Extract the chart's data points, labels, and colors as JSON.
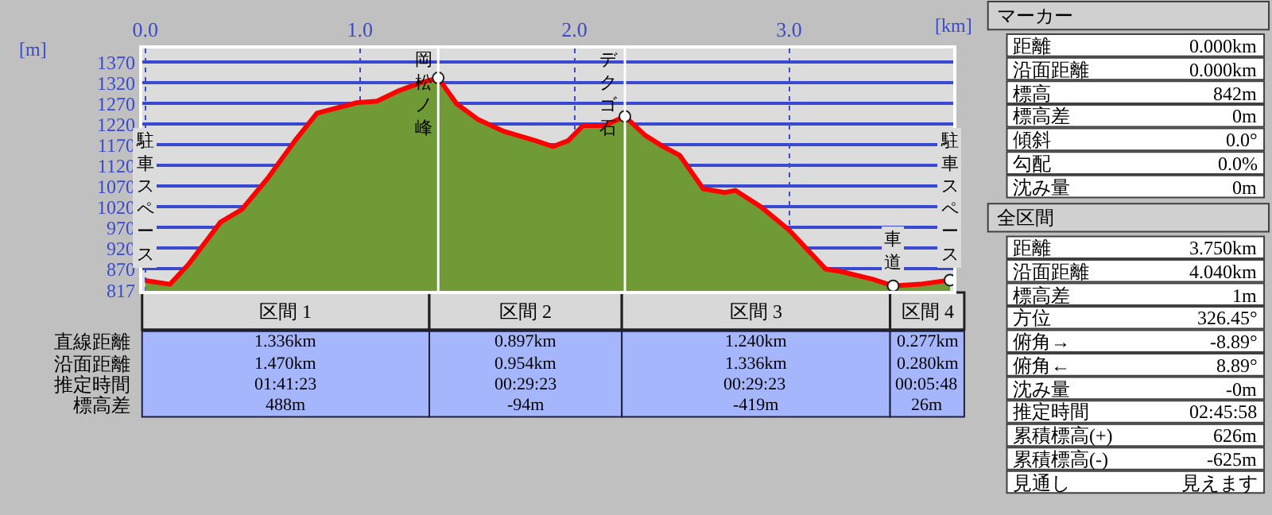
{
  "chart_data": [
    {
      "type": "area",
      "xlabel": "[km]",
      "ylabel": "[m]",
      "x": [
        0,
        0.115,
        0.2,
        0.35,
        0.45,
        0.57,
        0.7,
        0.8,
        0.985,
        1.08,
        1.18,
        1.28,
        1.365,
        1.45,
        1.55,
        1.67,
        1.82,
        1.9,
        1.97,
        2.04,
        2.14,
        2.235,
        2.33,
        2.41,
        2.49,
        2.6,
        2.7,
        2.75,
        2.87,
        3.0,
        3.17,
        3.24,
        3.39,
        3.485,
        3.61,
        3.75
      ],
      "series": [
        {
          "type": "area",
          "color": "#6f9a35",
          "values": [
            842,
            833,
            880,
            983,
            1014,
            1089,
            1182,
            1247,
            1272,
            1276,
            1301,
            1320,
            1332,
            1270,
            1232,
            1203,
            1180,
            1166,
            1180,
            1217,
            1217,
            1239,
            1193,
            1167,
            1145,
            1064,
            1055,
            1060,
            1020,
            964,
            870,
            864,
            845,
            829,
            833,
            843
          ]
        },
        {
          "type": "line",
          "color": "#ff0000",
          "values": [
            842,
            833,
            880,
            983,
            1014,
            1089,
            1182,
            1247,
            1272,
            1276,
            1301,
            1320,
            1332,
            1270,
            1232,
            1203,
            1180,
            1166,
            1180,
            1217,
            1217,
            1239,
            1193,
            1167,
            1145,
            1064,
            1055,
            1060,
            1020,
            964,
            870,
            864,
            845,
            829,
            833,
            843
          ]
        },
        {
          "type": "scatter",
          "color": "#ffffff",
          "marker": "circle",
          "x": [
            1.365,
            2.235,
            3.485,
            3.75
          ],
          "values": [
            1332,
            1239,
            829,
            843
          ]
        }
      ],
      "xlim": [
        -0.015,
        3.765
      ],
      "ylim": [
        817,
        1404
      ],
      "xticks": [
        {
          "value": 0,
          "label": "0.0"
        },
        {
          "value": 1,
          "label": "1.0"
        },
        {
          "value": 2,
          "label": "2.0"
        },
        {
          "value": 3,
          "label": "3.0"
        }
      ],
      "yticks": [
        817,
        870,
        920,
        970,
        1020,
        1070,
        1120,
        1170,
        1220,
        1270,
        1320,
        1370
      ],
      "grid": true,
      "ref_lines": [
        {
          "axis": "x",
          "value": 1.365,
          "label": "岡松ノ峰",
          "color": "#ffffff"
        },
        {
          "axis": "x",
          "value": 2.235,
          "label": "デクゴ石",
          "color": "#ffffff"
        }
      ],
      "annotations": [
        {
          "text": "駐車スペース",
          "x": 0,
          "y": 842
        },
        {
          "text": "車道",
          "x": 3.485,
          "y": 829
        },
        {
          "text": "駐車スペース",
          "x": 3.75,
          "y": 843
        }
      ]
    },
    {
      "type": "other",
      "categories": [
        "区間 1",
        "区間 2",
        "区間 3",
        "区間 4"
      ],
      "y_categories": [
        "直線距離",
        "沿面距離",
        "推定時間",
        "標高差"
      ],
      "cell_labels": [
        [
          "1.336km",
          "0.897km",
          "1.240km",
          "0.277km"
        ],
        [
          "1.470km",
          "0.954km",
          "1.336km",
          "0.280km"
        ],
        [
          "01:41:23",
          "00:29:23",
          "00:29:23",
          "00:05:48"
        ],
        [
          "488m",
          "-94m",
          "-419m",
          "26m"
        ]
      ]
    },
    {
      "type": "other",
      "title": "マーカー",
      "annotations": [
        "距離",
        "0.000km",
        "沿面距離",
        "0.000km",
        "標高",
        "842m",
        "標高差",
        "0m",
        "傾斜",
        "0.0°",
        "勾配",
        "0.0%",
        "沈み量",
        "0m"
      ]
    },
    {
      "type": "other",
      "title": "全区間",
      "annotations": [
        "距離",
        "3.750km",
        "沿面距離",
        "4.040km",
        "標高差",
        "1m",
        "方位",
        "326.45°",
        "俯角→",
        "-8.89°",
        "俯角←",
        "8.89°",
        "沈み量",
        "-0m",
        "推定時間",
        "02:45:58",
        "累積標高(+)",
        "626m",
        "累積標高(-)",
        "-625m",
        "見通し",
        "見えます"
      ]
    }
  ]
}
